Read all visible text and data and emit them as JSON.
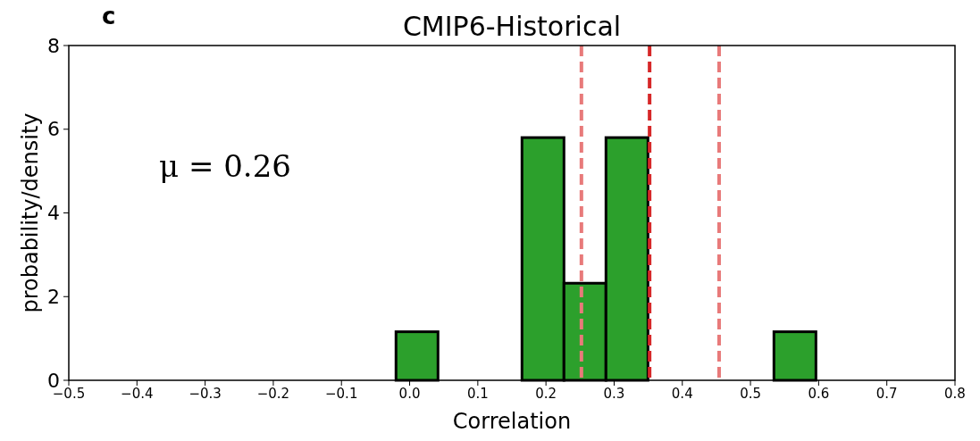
{
  "chart_data": {
    "type": "histogram",
    "title": "CMIP6-Historical",
    "xlabel": "Correlation",
    "ylabel": "probability/density",
    "bins": [
      -0.02,
      0.0416,
      0.1032,
      0.1648,
      0.2264,
      0.288,
      0.3496,
      0.4112,
      0.4728,
      0.5344,
      0.596
    ],
    "values": [
      1.16,
      0,
      0,
      5.8,
      2.32,
      5.8,
      0,
      0,
      0,
      1.16
    ],
    "color": "#2ca02c",
    "xlim": [
      -0.5,
      0.8
    ],
    "xticks": [
      {
        "value": -0.5,
        "label": "−0.5"
      },
      {
        "value": -0.4,
        "label": "−0.4"
      },
      {
        "value": -0.3,
        "label": "−0.3"
      },
      {
        "value": -0.2,
        "label": "−0.2"
      },
      {
        "value": -0.1,
        "label": "−0.1"
      },
      {
        "value": 0,
        "label": "0.0"
      },
      {
        "value": 0.1,
        "label": "0.1"
      },
      {
        "value": 0.2,
        "label": "0.2"
      },
      {
        "value": 0.3,
        "label": "0.3"
      },
      {
        "value": 0.4,
        "label": "0.4"
      },
      {
        "value": 0.5,
        "label": "0.5"
      },
      {
        "value": 0.6,
        "label": "0.6"
      },
      {
        "value": 0.7,
        "label": "0.7"
      },
      {
        "value": 0.8,
        "label": "0.8"
      }
    ],
    "ylim": [
      0,
      8
    ],
    "yticks": [
      0,
      2,
      4,
      6,
      8
    ],
    "ref_lines": [
      {
        "axis": "x",
        "value": 0.252,
        "color": "#e87a7a",
        "line_style": "dashed"
      },
      {
        "axis": "x",
        "value": 0.352,
        "color": "#d62728",
        "line_style": "dashed"
      },
      {
        "axis": "x",
        "value": 0.454,
        "color": "#e87a7a",
        "line_style": "dashed"
      }
    ],
    "annotations": [
      "c",
      "μ = 0.26"
    ],
    "grid": false
  }
}
